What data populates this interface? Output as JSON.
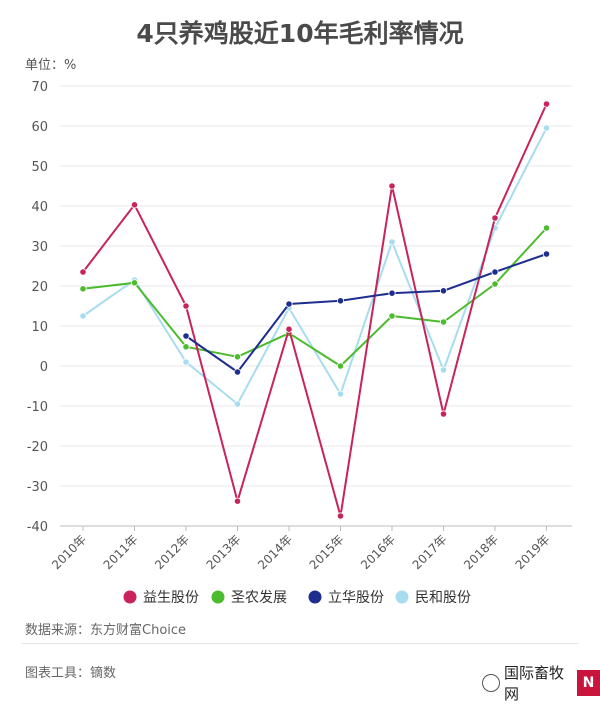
{
  "title": "4只养鸡股近10年毛利率情况",
  "unit_label": "单位：%",
  "source": "数据来源：东方财富Choice",
  "tool": "图表工具：镝数",
  "watermark": {
    "text": "国际畜牧网",
    "logo_text": "N",
    "icon": "wechat-icon"
  },
  "chart_data": {
    "type": "line",
    "title": "4只养鸡股近10年毛利率情况",
    "xlabel": "",
    "ylabel": "单位：%",
    "categories": [
      "2010年",
      "2011年",
      "2012年",
      "2013年",
      "2014年",
      "2015年",
      "2016年",
      "2017年",
      "2018年",
      "2019年"
    ],
    "ylim": [
      -40,
      70
    ],
    "yticks": [
      70,
      60,
      50,
      40,
      30,
      20,
      10,
      0,
      -10,
      -20,
      -30,
      -40
    ],
    "grid": true,
    "legend_position": "bottom",
    "series": [
      {
        "name": "益生股份",
        "color": "#c8235a",
        "values": [
          23.5,
          40.3,
          15.0,
          -33.8,
          9.2,
          -37.5,
          45.0,
          -12.0,
          37.0,
          65.5
        ]
      },
      {
        "name": "圣农发展",
        "color": "#4cbb2e",
        "values": [
          19.3,
          20.8,
          4.8,
          2.3,
          8.2,
          0.0,
          12.5,
          11.0,
          20.5,
          34.5
        ]
      },
      {
        "name": "立华股份",
        "color": "#1e2e8f",
        "values": [
          null,
          null,
          7.5,
          -1.5,
          15.5,
          16.3,
          18.2,
          18.8,
          23.5,
          28.0
        ]
      },
      {
        "name": "民和股份",
        "color": "#a8dcef",
        "values": [
          12.5,
          21.5,
          1.0,
          -9.5,
          14.5,
          -7.0,
          31.0,
          -1.0,
          34.5,
          59.5
        ]
      }
    ]
  }
}
